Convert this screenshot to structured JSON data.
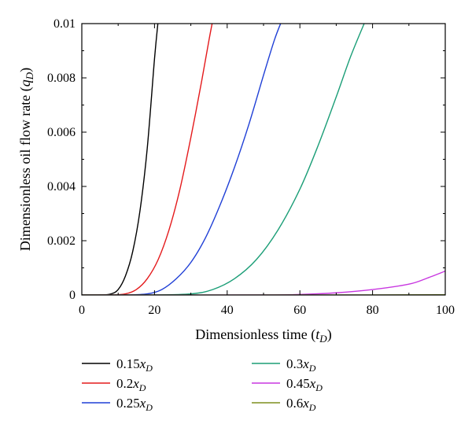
{
  "chart_data": {
    "type": "line",
    "title": "",
    "xlabel_parts": [
      "Dimensionless time (",
      "t",
      "D",
      ")"
    ],
    "ylabel_parts": [
      "Dimensionless oil flow rate (",
      "q",
      "D",
      ")"
    ],
    "xlim": [
      0,
      100
    ],
    "ylim": [
      0,
      0.01
    ],
    "x_ticks": [
      0,
      20,
      40,
      60,
      80,
      100
    ],
    "x_tick_labels": [
      "0",
      "20",
      "40",
      "60",
      "80",
      "100"
    ],
    "y_ticks": [
      0,
      0.002,
      0.004,
      0.006,
      0.008,
      0.01
    ],
    "y_tick_labels": [
      "0",
      "0.002",
      "0.004",
      "0.006",
      "0.008",
      "0.01"
    ],
    "grid": false,
    "legend_position": "bottom",
    "series": [
      {
        "name_prefix": "0.15",
        "name_var": "x",
        "name_sub": "D",
        "color": "#000000",
        "x": [
          0,
          5,
          8,
          10,
          12,
          14,
          16,
          18,
          20,
          21
        ],
        "y": [
          0,
          0,
          4e-05,
          0.0002,
          0.0007,
          0.0016,
          0.0031,
          0.0054,
          0.0087,
          0.0101
        ]
      },
      {
        "name_prefix": "0.2",
        "name_var": "x",
        "name_sub": "D",
        "color": "#e41a1c",
        "x": [
          0,
          8,
          12,
          15,
          18,
          21,
          24,
          27,
          30,
          33,
          35,
          36
        ],
        "y": [
          0,
          0,
          4e-05,
          0.0002,
          0.0006,
          0.0013,
          0.0024,
          0.0039,
          0.0058,
          0.0079,
          0.0094,
          0.0101
        ]
      },
      {
        "name_prefix": "0.25",
        "name_var": "x",
        "name_sub": "D",
        "color": "#1f3fd6",
        "x": [
          0,
          12,
          18,
          22,
          26,
          30,
          34,
          38,
          42,
          46,
          50,
          53,
          55
        ],
        "y": [
          0,
          0,
          4e-05,
          0.0002,
          0.0006,
          0.0012,
          0.0021,
          0.0033,
          0.0047,
          0.0063,
          0.0081,
          0.0094,
          0.0101
        ]
      },
      {
        "name_prefix": "0.3",
        "name_var": "x",
        "name_sub": "D",
        "color": "#1b9e77",
        "x": [
          0,
          20,
          30,
          36,
          42,
          48,
          54,
          60,
          65,
          70,
          74,
          78
        ],
        "y": [
          0,
          0,
          4e-05,
          0.0002,
          0.0006,
          0.0013,
          0.0024,
          0.0039,
          0.0055,
          0.0073,
          0.0088,
          0.0101
        ]
      },
      {
        "name_prefix": "0.45",
        "name_var": "x",
        "name_sub": "D",
        "color": "#c837e0",
        "x": [
          0,
          50,
          60,
          70,
          80,
          90,
          95,
          100
        ],
        "y": [
          0,
          0,
          2e-05,
          8e-05,
          0.0002,
          0.0004,
          0.00062,
          0.00088
        ]
      },
      {
        "name_prefix": "0.6",
        "name_var": "x",
        "name_sub": "D",
        "color": "#7f8f1f",
        "x": [
          0,
          80,
          100
        ],
        "y": [
          0,
          0,
          1e-05
        ]
      }
    ]
  }
}
